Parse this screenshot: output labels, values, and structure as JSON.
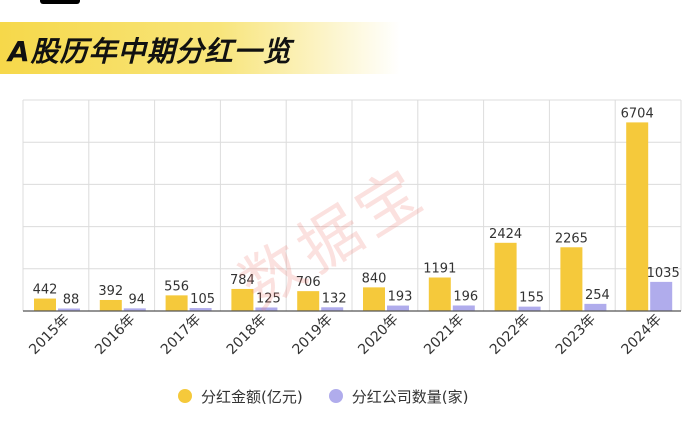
{
  "title": "A股历年中期分红一览",
  "watermark": "数据宝",
  "colors": {
    "amount": "#f5c93b",
    "count": "#b0acec",
    "title_band": "#f6d84a"
  },
  "chart_data": {
    "type": "bar",
    "categories": [
      "2015年",
      "2016年",
      "2017年",
      "2018年",
      "2019年",
      "2020年",
      "2021年",
      "2022年",
      "2023年",
      "2024年"
    ],
    "series": [
      {
        "name": "分红金额(亿元)",
        "values": [
          442,
          392,
          556,
          784,
          706,
          840,
          1191,
          2424,
          2265,
          6704
        ]
      },
      {
        "name": "分红公司数量(家)",
        "values": [
          88,
          94,
          105,
          125,
          132,
          193,
          196,
          155,
          254,
          1035
        ]
      }
    ],
    "ylim": [
      0,
      7500
    ],
    "grid": true,
    "legend": "bottom",
    "xlabel": "",
    "ylabel": ""
  }
}
